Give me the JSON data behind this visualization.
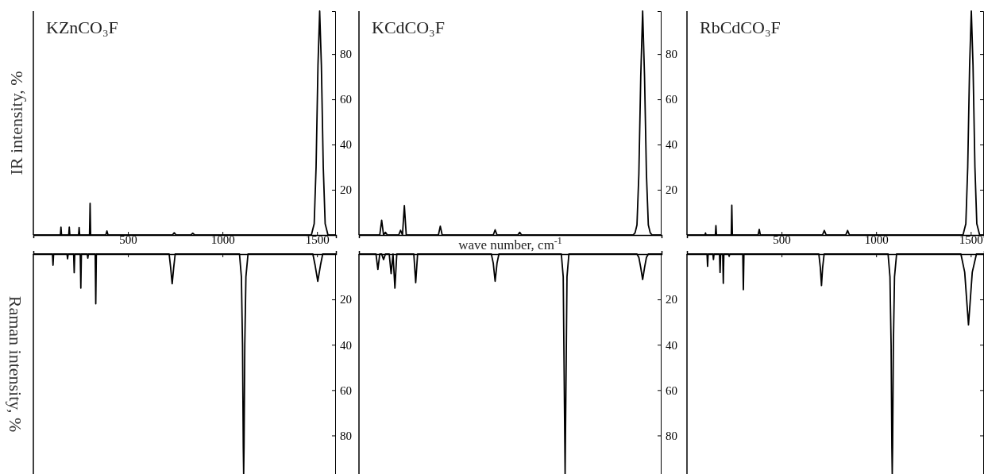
{
  "chart_data": [
    {
      "type": "line",
      "title": "KZnCO₃F",
      "ylabel": "IR intensity, %",
      "color": "#000000",
      "xlim": [
        0,
        1600
      ],
      "xticks": [
        500,
        1000,
        1500
      ],
      "ylim": [
        0,
        99
      ],
      "yticks": [
        20,
        40,
        60,
        80
      ],
      "x": [
        0,
        143,
        146,
        149,
        187,
        190,
        193,
        239,
        242,
        245,
        297,
        300,
        303,
        383,
        389,
        395,
        735,
        745,
        755,
        833,
        843,
        853,
        1470,
        1485,
        1495,
        1505,
        1514,
        1523,
        1533,
        1543,
        1558,
        1600
      ],
      "values": [
        0,
        0,
        3.5,
        0,
        0,
        3.5,
        0,
        0,
        3.3,
        0,
        0,
        14,
        0,
        0,
        1.8,
        0,
        0,
        1,
        0,
        0,
        0.8,
        0,
        0,
        5,
        30,
        75,
        99,
        75,
        30,
        5,
        0,
        0
      ]
    },
    {
      "type": "line",
      "title": "KCdCO₃F",
      "xlabel": "wave number, cm$^{-1}$",
      "color": "#000000",
      "ylim": [
        0,
        99
      ],
      "yticks": [
        20,
        40,
        60,
        80
      ],
      "tick_labels": "y",
      "categories": [
        null,
        null,
        null,
        null,
        null,
        null,
        null,
        null,
        null,
        null,
        null,
        null,
        null,
        null,
        null,
        null,
        null,
        null,
        null,
        null,
        null,
        null,
        null,
        null,
        null,
        null,
        null,
        null,
        null,
        null,
        null,
        null,
        null,
        null,
        null,
        null,
        null,
        null,
        null,
        null,
        null,
        null,
        null,
        null,
        null,
        null,
        null,
        null,
        null,
        null,
        null,
        null,
        null,
        null,
        null,
        null,
        null,
        null,
        null,
        null,
        null,
        null,
        null,
        null,
        null,
        null,
        null,
        null,
        null,
        null,
        null,
        null,
        null,
        null,
        null,
        null,
        null,
        null,
        null,
        null,
        null,
        null,
        null,
        null,
        null,
        null,
        null,
        null,
        null,
        null,
        null,
        null,
        null,
        null,
        null,
        null,
        null,
        null,
        null,
        null,
        null,
        null,
        null,
        null,
        null,
        null,
        null,
        null,
        null,
        null,
        null,
        null,
        null,
        null,
        null,
        null,
        null,
        null,
        null,
        null,
        null,
        null,
        null,
        null,
        null,
        null,
        null,
        null,
        null,
        null,
        null,
        null,
        null,
        null,
        null,
        null,
        null,
        null,
        null,
        null,
        null,
        null,
        null,
        null,
        null,
        null,
        null,
        null,
        null,
        null,
        null,
        null,
        null,
        null,
        null,
        null,
        null,
        null,
        null,
        null,
        null
      ],
      "values": [
        0,
        0,
        0,
        0,
        0,
        0,
        0,
        0,
        0,
        0,
        0,
        0,
        6.5,
        0,
        1.2,
        0,
        0,
        0,
        0,
        0,
        0,
        0,
        2.1,
        0,
        13,
        0,
        0,
        0,
        0,
        0,
        0,
        0,
        0,
        0,
        0,
        0,
        0,
        0,
        0,
        0,
        0,
        0,
        0,
        3.9,
        0,
        0,
        0,
        0,
        0,
        0,
        0,
        0,
        0,
        0,
        0,
        0,
        0,
        0,
        0,
        0,
        0,
        0,
        0,
        0,
        0,
        0,
        0,
        0,
        0,
        0,
        0,
        0,
        2.3,
        0,
        0,
        0,
        0,
        0,
        0,
        0,
        0,
        0,
        0,
        0,
        0,
        1.2,
        0,
        0,
        0,
        0,
        0,
        0,
        0,
        0,
        0,
        0,
        0,
        0,
        0,
        0,
        0,
        0,
        0,
        0,
        0,
        0,
        0,
        0,
        0,
        0,
        0,
        0,
        0,
        0,
        0,
        0,
        0,
        0,
        0,
        0,
        0,
        0,
        0,
        0,
        0,
        0,
        0,
        0,
        0,
        0,
        0,
        0,
        0,
        0,
        0,
        0,
        0,
        0,
        0,
        0,
        0,
        0,
        0,
        0,
        0,
        0,
        1,
        4.5,
        27,
        70,
        99,
        70,
        27,
        4.5,
        1,
        0,
        0,
        0,
        0,
        0,
        0
      ]
    },
    {
      "type": "line",
      "title": "RbCdCO₃F",
      "color": "#000000",
      "xlim": [
        0,
        1570
      ],
      "xticks": [
        500,
        1000,
        1500
      ],
      "ylim": [
        0,
        99
      ],
      "yticks": [
        20,
        40,
        60,
        80
      ],
      "tick_labels": "x",
      "x": [
        0,
        95,
        98,
        101,
        150,
        153,
        156,
        234,
        237,
        240,
        376,
        382,
        388,
        716,
        726,
        736,
        839,
        849,
        859,
        1459,
        1474,
        1484,
        1494,
        1503,
        1512,
        1522,
        1532,
        1547,
        1570
      ],
      "values": [
        0,
        0,
        0.9,
        0,
        0,
        4.2,
        0,
        0,
        13.2,
        0,
        0,
        2.5,
        0,
        0,
        2,
        0,
        0,
        2,
        0,
        0,
        5,
        30,
        75,
        99,
        75,
        30,
        5,
        0,
        0
      ]
    },
    {
      "type": "line",
      "ylabel": "Raman intensity, %",
      "color": "#000000",
      "xlim": [
        0,
        1600
      ],
      "xticks": [
        500,
        1000,
        1500
      ],
      "ylim": [
        97,
        0
      ],
      "yticks": [
        20,
        40,
        60,
        80
      ],
      "tick_labels": "y",
      "x": [
        0,
        101,
        104,
        107,
        178,
        181,
        184,
        213,
        216,
        219,
        248,
        251,
        254,
        285,
        288,
        291,
        327,
        330,
        333,
        718,
        726,
        734,
        742,
        750,
        1090,
        1100,
        1106,
        1110,
        1112,
        1114,
        1118,
        1124,
        1135,
        1478,
        1490,
        1504,
        1518,
        1530,
        1600
      ],
      "values": [
        0,
        0,
        4.9,
        0,
        0,
        2.1,
        0,
        0,
        8.2,
        0,
        0,
        15,
        0,
        0,
        1.8,
        0,
        0,
        21.9,
        0,
        0,
        6,
        13.1,
        6,
        0,
        0,
        10,
        40,
        85,
        97,
        85,
        40,
        10,
        0,
        0,
        5,
        12,
        5,
        0,
        0
      ]
    },
    {
      "type": "line",
      "color": "#000000",
      "ylim": [
        97,
        0
      ],
      "yticks": [
        20,
        40,
        60,
        80
      ],
      "tick_labels": "y",
      "categories": [
        null,
        null,
        null,
        null,
        null,
        null,
        null,
        null,
        null,
        null,
        null,
        null,
        null,
        null,
        null,
        null,
        null,
        null,
        null,
        null,
        null,
        null,
        null,
        null,
        null,
        null,
        null,
        null,
        null,
        null,
        null,
        null,
        null,
        null,
        null,
        null,
        null,
        null,
        null,
        null,
        null,
        null,
        null,
        null,
        null,
        null,
        null,
        null,
        null,
        null,
        null,
        null,
        null,
        null,
        null,
        null,
        null,
        null,
        null,
        null,
        null,
        null,
        null,
        null,
        null,
        null,
        null,
        null,
        null,
        null,
        null,
        null,
        null,
        null,
        null,
        null,
        null,
        null,
        null,
        null,
        null,
        null,
        null,
        null,
        null,
        null,
        null,
        null,
        null,
        null,
        null,
        null,
        null,
        null,
        null,
        null,
        null,
        null,
        null,
        null,
        null,
        null,
        null,
        null,
        null,
        null,
        null,
        null,
        null,
        null,
        null,
        null,
        null,
        null,
        null,
        null,
        null,
        null,
        null,
        null,
        null,
        null,
        null,
        null,
        null,
        null,
        null,
        null,
        null,
        null,
        null,
        null,
        null,
        null,
        null,
        null,
        null,
        null,
        null,
        null,
        null,
        null,
        null,
        null,
        null,
        null,
        null,
        null,
        null,
        null,
        null,
        null,
        null,
        null,
        null,
        null,
        null,
        null,
        null,
        null,
        null
      ],
      "values": [
        0,
        0,
        0,
        0,
        0,
        0,
        0,
        0,
        0,
        0,
        6.8,
        0,
        0,
        2.4,
        0,
        0,
        0,
        8.6,
        0,
        15,
        0,
        0,
        0,
        0,
        0,
        0,
        0,
        0,
        0,
        0,
        12.6,
        0,
        0,
        0,
        0,
        0,
        0,
        0,
        0,
        0,
        0,
        0,
        0,
        0,
        0,
        0,
        0,
        0,
        0,
        0,
        0,
        0,
        0,
        0,
        0,
        0,
        0,
        0,
        0,
        0,
        0,
        0,
        0,
        0,
        0,
        0,
        0,
        0,
        0,
        0,
        0,
        4,
        12,
        4,
        0,
        0,
        0,
        0,
        0,
        0,
        0,
        0,
        0,
        0,
        0,
        0,
        0,
        0,
        0,
        0,
        0,
        0,
        0,
        0,
        0,
        0,
        0,
        0,
        0,
        0,
        0,
        0,
        0,
        0,
        0,
        0,
        0,
        0,
        10,
        97,
        10,
        0,
        0,
        0,
        0,
        0,
        0,
        0,
        0,
        0,
        0,
        0,
        0,
        0,
        0,
        0,
        0,
        0,
        0,
        0,
        0,
        0,
        0,
        0,
        0,
        0,
        0,
        0,
        0,
        0,
        0,
        0,
        0,
        0,
        0,
        0,
        0,
        0,
        1.5,
        6,
        11.2,
        6,
        1.5,
        0,
        0,
        0,
        0,
        0,
        0,
        0,
        0
      ]
    },
    {
      "type": "line",
      "color": "#000000",
      "xlim": [
        0,
        1570
      ],
      "xticks": [
        500,
        1000,
        1500
      ],
      "ylim": [
        97,
        0
      ],
      "yticks": [
        20,
        40,
        60,
        80
      ],
      "tick_labels": false,
      "x": [
        0,
        106,
        109,
        112,
        137,
        140,
        143,
        172,
        175,
        178,
        189,
        192,
        195,
        220,
        223,
        226,
        295,
        298,
        301,
        697,
        705,
        711,
        717,
        725,
        1063,
        1073,
        1079,
        1083,
        1085,
        1087,
        1091,
        1097,
        1108,
        1448,
        1468,
        1480,
        1488,
        1496,
        1508,
        1530,
        1570
      ],
      "values": [
        0,
        0,
        5.4,
        0,
        0,
        2.4,
        0,
        0,
        8.1,
        0,
        0,
        12.9,
        0,
        0,
        1,
        0,
        0,
        15.7,
        0,
        0,
        6,
        13.9,
        6,
        0,
        0,
        10,
        40,
        85,
        97,
        85,
        40,
        10,
        0,
        0,
        8,
        22,
        31.2,
        22,
        8,
        0,
        0
      ]
    }
  ]
}
